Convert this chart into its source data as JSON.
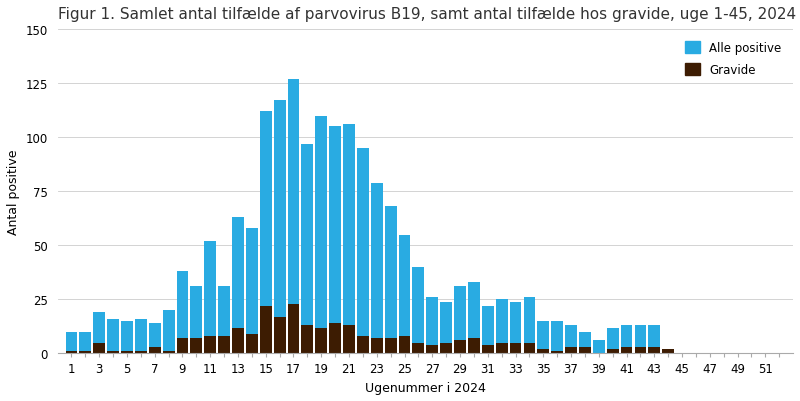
{
  "title": "Figur 1. Samlet antal tilfælde af parvovirus B19, samt antal tilfælde hos gravide, uge 1-45, 2024",
  "xlabel": "Ugenummer i 2024",
  "ylabel": "Antal positive",
  "weeks": [
    1,
    2,
    3,
    4,
    5,
    6,
    7,
    8,
    9,
    10,
    11,
    12,
    13,
    14,
    15,
    16,
    17,
    18,
    19,
    20,
    21,
    22,
    23,
    24,
    25,
    26,
    27,
    28,
    29,
    30,
    31,
    32,
    33,
    34,
    35,
    36,
    37,
    38,
    39,
    40,
    41,
    42,
    43,
    44,
    45,
    46,
    47,
    48,
    49,
    50,
    51,
    52
  ],
  "alle_positive": [
    10,
    10,
    19,
    16,
    15,
    16,
    14,
    20,
    38,
    31,
    52,
    31,
    63,
    58,
    112,
    117,
    127,
    97,
    110,
    105,
    106,
    95,
    79,
    68,
    55,
    40,
    26,
    24,
    31,
    33,
    22,
    25,
    24,
    26,
    15,
    15,
    13,
    10,
    6,
    12,
    13,
    13,
    13,
    2,
    0,
    0,
    0,
    0,
    0,
    0,
    0,
    0
  ],
  "gravide": [
    1,
    1,
    5,
    1,
    1,
    1,
    3,
    1,
    7,
    7,
    8,
    8,
    12,
    9,
    22,
    17,
    23,
    13,
    12,
    14,
    13,
    8,
    7,
    7,
    8,
    5,
    4,
    5,
    6,
    7,
    4,
    5,
    5,
    5,
    2,
    1,
    3,
    3,
    0,
    2,
    3,
    3,
    3,
    2,
    0,
    0,
    0,
    0,
    0,
    0,
    0,
    0
  ],
  "bar_color_alle": "#29ABE2",
  "bar_color_gravide": "#3D1C02",
  "ylim": [
    0,
    150
  ],
  "yticks": [
    0,
    25,
    50,
    75,
    100,
    125,
    150
  ],
  "legend_alle": "Alle positive",
  "legend_gravide": "Gravide",
  "bg_color": "#ffffff",
  "title_fontsize": 11,
  "axis_fontsize": 9,
  "tick_fontsize": 8.5
}
